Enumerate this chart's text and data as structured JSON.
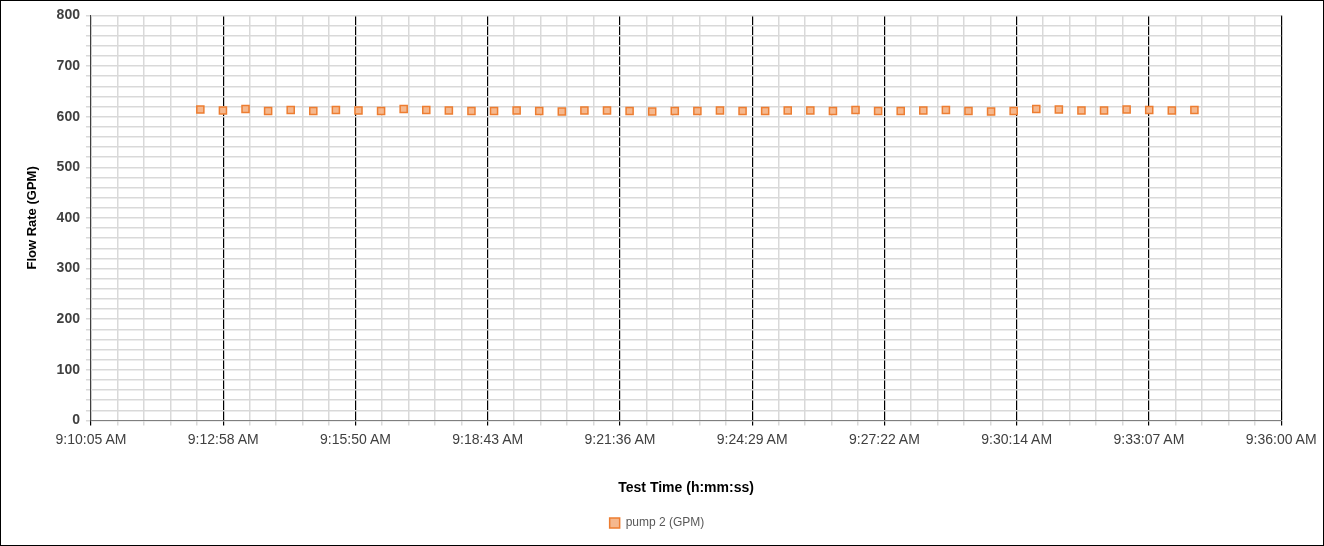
{
  "chart_data": {
    "type": "scatter",
    "xlabel": "Test Time (h:mm:ss)",
    "ylabel": "Flow Rate (GPM)",
    "xlim": [
      9.168,
      9.6
    ],
    "xticks": [
      {
        "value": 9.168,
        "label": "9:10:05 AM"
      },
      {
        "value": 9.1776,
        "label": null
      },
      {
        "value": 9.1872,
        "label": null
      },
      {
        "value": 9.1968,
        "label": null
      },
      {
        "value": 9.2064,
        "label": null
      },
      {
        "value": 9.216,
        "label": "9:12:58 AM"
      },
      {
        "value": 9.2256,
        "label": null
      },
      {
        "value": 9.2352,
        "label": null
      },
      {
        "value": 9.2448,
        "label": null
      },
      {
        "value": 9.2544,
        "label": null
      },
      {
        "value": 9.264,
        "label": "9:15:50 AM"
      },
      {
        "value": 9.2736,
        "label": null
      },
      {
        "value": 9.2832,
        "label": null
      },
      {
        "value": 9.2928,
        "label": null
      },
      {
        "value": 9.3024,
        "label": null
      },
      {
        "value": 9.312,
        "label": "9:18:43 AM"
      },
      {
        "value": 9.3216,
        "label": null
      },
      {
        "value": 9.3312,
        "label": null
      },
      {
        "value": 9.3408,
        "label": null
      },
      {
        "value": 9.3504,
        "label": null
      },
      {
        "value": 9.36,
        "label": "9:21:36 AM"
      },
      {
        "value": 9.3696,
        "label": null
      },
      {
        "value": 9.3792,
        "label": null
      },
      {
        "value": 9.3888,
        "label": null
      },
      {
        "value": 9.3984,
        "label": null
      },
      {
        "value": 9.408,
        "label": "9:24:29 AM"
      },
      {
        "value": 9.4176,
        "label": null
      },
      {
        "value": 9.4272,
        "label": null
      },
      {
        "value": 9.4368,
        "label": null
      },
      {
        "value": 9.4464,
        "label": null
      },
      {
        "value": 9.456,
        "label": "9:27:22 AM"
      },
      {
        "value": 9.4656,
        "label": null
      },
      {
        "value": 9.4752,
        "label": null
      },
      {
        "value": 9.4848,
        "label": null
      },
      {
        "value": 9.4944,
        "label": null
      },
      {
        "value": 9.504,
        "label": "9:30:14 AM"
      },
      {
        "value": 9.5136,
        "label": null
      },
      {
        "value": 9.5232,
        "label": null
      },
      {
        "value": 9.5328,
        "label": null
      },
      {
        "value": 9.5424,
        "label": null
      },
      {
        "value": 9.552,
        "label": "9:33:07 AM"
      },
      {
        "value": 9.5616,
        "label": null
      },
      {
        "value": 9.5712,
        "label": null
      },
      {
        "value": 9.5808,
        "label": null
      },
      {
        "value": 9.5904,
        "label": null
      },
      {
        "value": 9.6,
        "label": "9:36:00 AM"
      }
    ],
    "ylim": [
      0,
      800
    ],
    "yticks": [
      0,
      {
        "value": 20,
        "label": null
      },
      {
        "value": 40,
        "label": null
      },
      {
        "value": 60,
        "label": null
      },
      {
        "value": 80,
        "label": null
      },
      100,
      {
        "value": 120,
        "label": null
      },
      {
        "value": 140,
        "label": null
      },
      {
        "value": 160,
        "label": null
      },
      {
        "value": 180,
        "label": null
      },
      200,
      {
        "value": 220,
        "label": null
      },
      {
        "value": 240,
        "label": null
      },
      {
        "value": 260,
        "label": null
      },
      {
        "value": 280,
        "label": null
      },
      300,
      {
        "value": 320,
        "label": null
      },
      {
        "value": 340,
        "label": null
      },
      {
        "value": 360,
        "label": null
      },
      {
        "value": 380,
        "label": null
      },
      400,
      {
        "value": 420,
        "label": null
      },
      {
        "value": 440,
        "label": null
      },
      {
        "value": 460,
        "label": null
      },
      {
        "value": 480,
        "label": null
      },
      500,
      {
        "value": 520,
        "label": null
      },
      {
        "value": 540,
        "label": null
      },
      {
        "value": 560,
        "label": null
      },
      {
        "value": 580,
        "label": null
      },
      600,
      {
        "value": 620,
        "label": null
      },
      {
        "value": 640,
        "label": null
      },
      {
        "value": 660,
        "label": null
      },
      {
        "value": 680,
        "label": null
      },
      700,
      {
        "value": 720,
        "label": null
      },
      {
        "value": 740,
        "label": null
      },
      {
        "value": 760,
        "label": null
      },
      {
        "value": 780,
        "label": null
      },
      800
    ],
    "grid": true,
    "legend": "bottom",
    "marker": "square",
    "series": [
      {
        "name": "pump 2 (GPM)",
        "color": "#ed7d31",
        "x": [
          9.2077,
          9.2159,
          9.2241,
          9.2323,
          9.2405,
          9.2487,
          9.2569,
          9.2651,
          9.2733,
          9.2815,
          9.2897,
          9.2979,
          9.3061,
          9.3143,
          9.3225,
          9.3307,
          9.3389,
          9.3471,
          9.3553,
          9.3635,
          9.3717,
          9.3799,
          9.3881,
          9.3963,
          9.4045,
          9.4127,
          9.4209,
          9.4291,
          9.4373,
          9.4455,
          9.4537,
          9.4619,
          9.4701,
          9.4783,
          9.4865,
          9.4947,
          9.5029,
          9.5111,
          9.5193,
          9.5275,
          9.5357,
          9.5439,
          9.5521,
          9.5603,
          9.5685
        ],
        "values": [
          614,
          612,
          615,
          611,
          613,
          611,
          613,
          612,
          611,
          615,
          613,
          612,
          611,
          611,
          612,
          611,
          610,
          612,
          612,
          611,
          610,
          611,
          611,
          612,
          611,
          611,
          612,
          612,
          611,
          613,
          611,
          611,
          612,
          613,
          611,
          610,
          611,
          615,
          614,
          612,
          612,
          614,
          613,
          612,
          613
        ]
      }
    ]
  }
}
